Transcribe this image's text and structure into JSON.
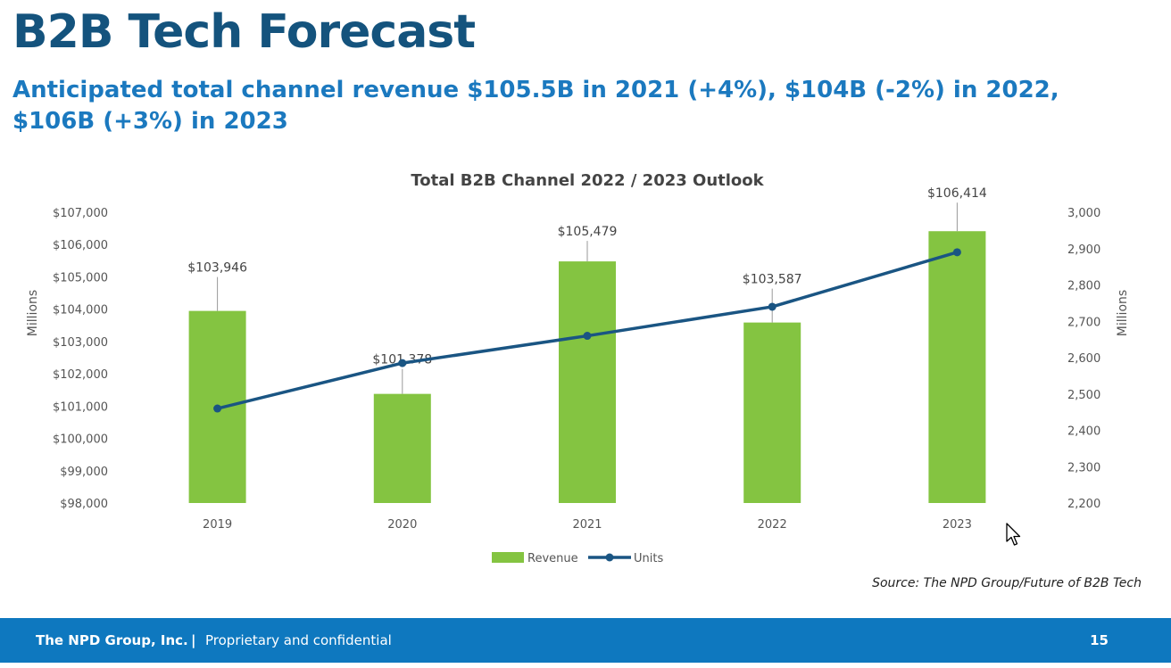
{
  "slide": {
    "title": "B2B Tech Forecast",
    "subtitle": "Anticipated total channel revenue $105.5B in 2021 (+4%), $104B (-2%) in 2022, $106B (+3%) in 2023",
    "source": "Source: The NPD Group/Future of B2B Tech"
  },
  "footer": {
    "company": "The NPD Group, Inc.",
    "separator": "|",
    "note": "Proprietary and confidential",
    "page_number": "15"
  },
  "colors": {
    "title": "#14537d",
    "subtitle": "#1b79bf",
    "bar": "#84c441",
    "line": "#1a5583",
    "footer": "#0e78bf"
  },
  "chart_data": {
    "type": "bar",
    "title": "Total B2B Channel 2022 / 2023 Outlook",
    "categories": [
      "2019",
      "2020",
      "2021",
      "2022",
      "2023"
    ],
    "ylabel": "Millions",
    "y2label": "Millions",
    "ylim": [
      98000,
      107000
    ],
    "y2lim": [
      2200,
      3000
    ],
    "yticks": [
      98000,
      99000,
      100000,
      101000,
      102000,
      103000,
      104000,
      105000,
      106000,
      107000
    ],
    "ytick_labels": [
      "$98,000",
      "$99,000",
      "$100,000",
      "$101,000",
      "$102,000",
      "$103,000",
      "$104,000",
      "$105,000",
      "$106,000",
      "$107,000"
    ],
    "y2ticks": [
      2200,
      2300,
      2400,
      2500,
      2600,
      2700,
      2800,
      2900,
      3000
    ],
    "y2tick_labels": [
      "2,200",
      "2,300",
      "2,400",
      "2,500",
      "2,600",
      "2,700",
      "2,800",
      "2,900",
      "3,000"
    ],
    "grid": false,
    "legend": "bottom",
    "series": [
      {
        "name": "Revenue",
        "type": "bar",
        "axis": "left",
        "values": [
          103946,
          101378,
          105479,
          103587,
          106414
        ],
        "labels": [
          "$103,946",
          "$101,378",
          "$105,479",
          "$103,587",
          "$106,414"
        ]
      },
      {
        "name": "Units",
        "type": "line",
        "axis": "right",
        "values": [
          2460,
          2585,
          2660,
          2740,
          2890
        ]
      }
    ]
  }
}
